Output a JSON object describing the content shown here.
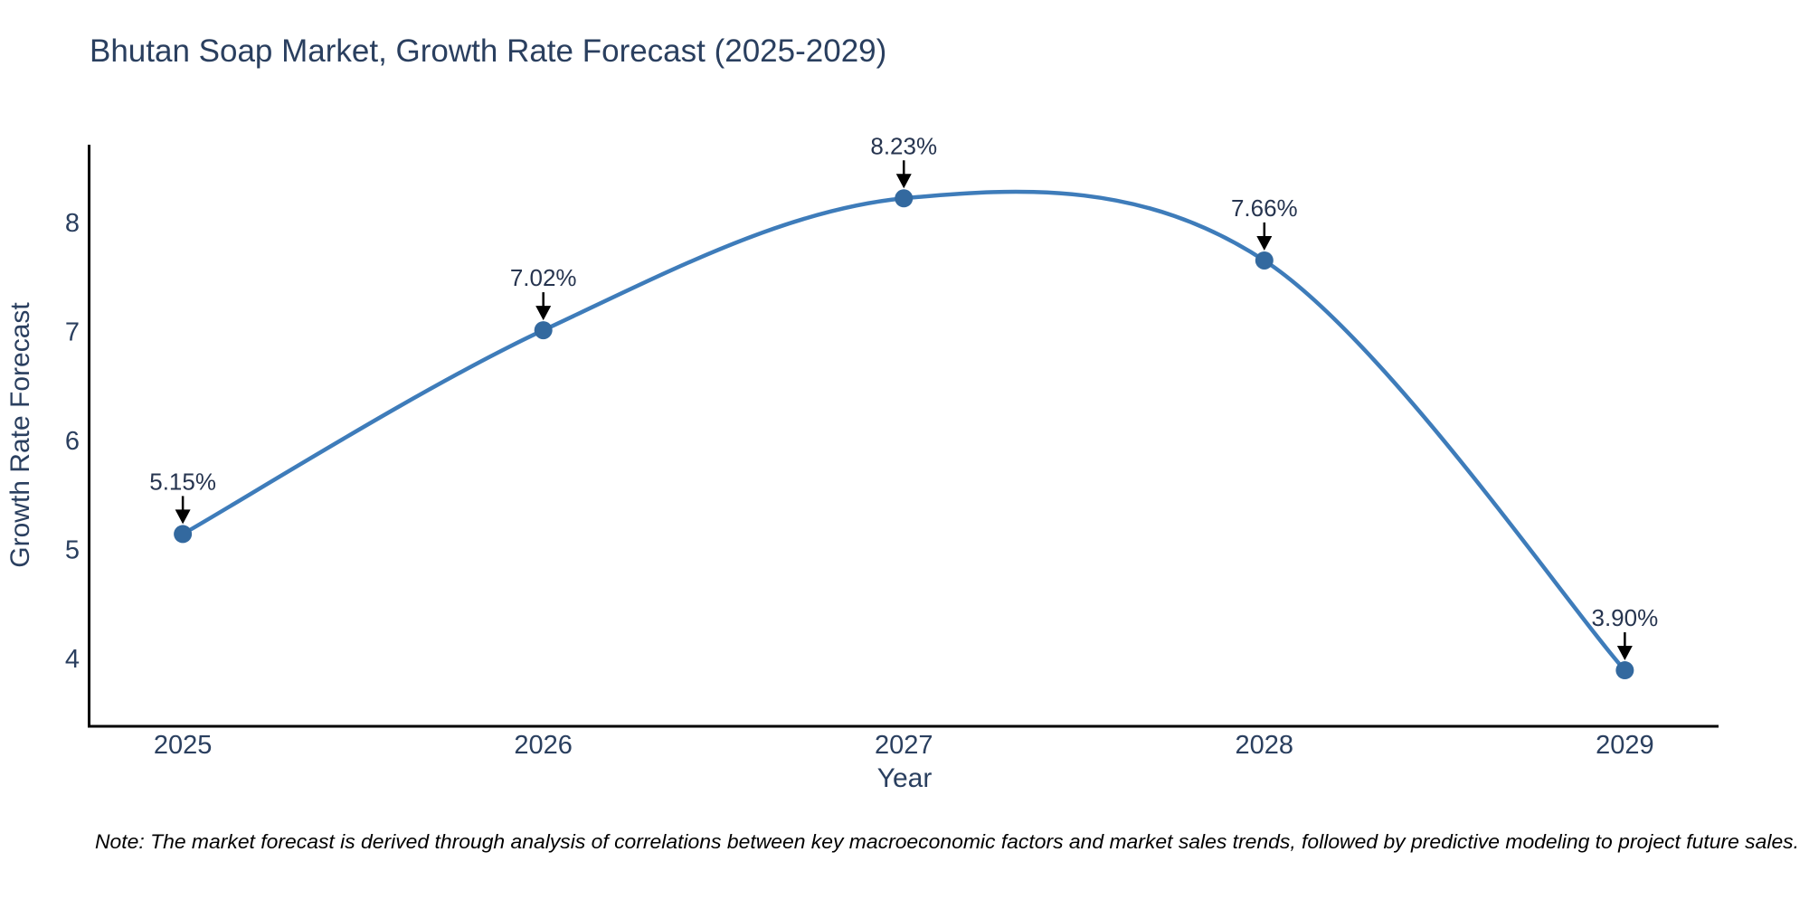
{
  "chart_data": {
    "type": "line",
    "line_shape": "spline",
    "title": "Bhutan Soap Market, Growth Rate Forecast (2025-2029)",
    "xlabel": "Year",
    "ylabel": "Growth Rate Forecast",
    "x": [
      2025,
      2026,
      2027,
      2028,
      2029
    ],
    "series": [
      {
        "name": "Growth Rate Forecast",
        "values": [
          5.15,
          7.02,
          8.23,
          7.66,
          3.9
        ]
      }
    ],
    "point_labels": [
      "5.15%",
      "7.02%",
      "8.23%",
      "7.66%",
      "3.90%"
    ],
    "annotation_style": "black-arrow-pointing-down-to-marker",
    "xticks": [
      "2025",
      "2026",
      "2027",
      "2028",
      "2029"
    ],
    "yticks": [
      4,
      5,
      6,
      7,
      8
    ],
    "xlim": [
      2024.74,
      2029.26
    ],
    "ylim": [
      3.386,
      8.722
    ],
    "grid": false,
    "legend": "none",
    "colors": {
      "line": "#3e7cba",
      "marker": "#33699f",
      "axis": "#000000",
      "text": "#2a3f5f",
      "annotation": "#26344f",
      "arrow": "#000000",
      "background": "#ffffff"
    }
  },
  "note": "Note: The market forecast is derived through analysis of correlations between key macroeconomic factors and market sales trends, followed by predictive modeling to project future sales."
}
